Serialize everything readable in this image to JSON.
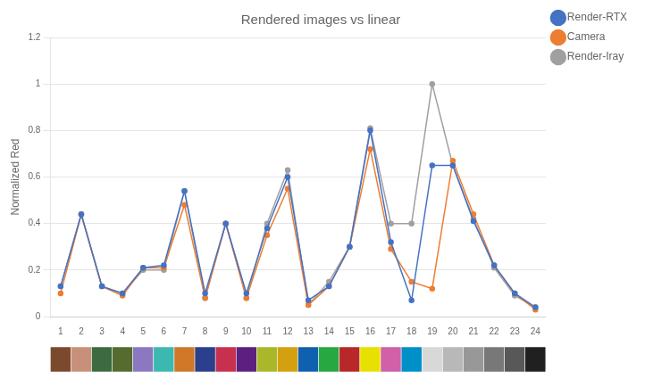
{
  "chart_data": [
    {
      "type": "line",
      "title": "Rendered images vs linear",
      "ylabel": "Normalized Red",
      "x": [
        1,
        2,
        3,
        4,
        5,
        6,
        7,
        8,
        9,
        10,
        11,
        12,
        13,
        14,
        15,
        16,
        17,
        18,
        19,
        20,
        21,
        22,
        23,
        24
      ],
      "series": [
        {
          "name": "Render-RTX",
          "color": "#4472C4",
          "values": [
            0.13,
            0.44,
            0.13,
            0.1,
            0.21,
            0.22,
            0.54,
            0.1,
            0.4,
            0.1,
            0.38,
            0.6,
            0.07,
            0.13,
            0.3,
            0.8,
            0.32,
            0.07,
            0.65,
            0.65,
            0.41,
            0.22,
            0.1,
            0.04
          ]
        },
        {
          "name": "Camera",
          "color": "#ED7D31",
          "values": [
            0.1,
            0.44,
            0.13,
            0.09,
            0.21,
            0.21,
            0.48,
            0.08,
            0.4,
            0.08,
            0.35,
            0.55,
            0.05,
            0.13,
            0.3,
            0.72,
            0.29,
            0.15,
            0.12,
            0.67,
            0.44,
            0.22,
            0.1,
            0.03
          ]
        },
        {
          "name": "Render-Iray",
          "color": "#A0A0A0",
          "values": [
            0.13,
            0.44,
            0.13,
            0.1,
            0.2,
            0.2,
            0.54,
            0.08,
            0.4,
            0.08,
            0.4,
            0.63,
            0.05,
            0.15,
            0.3,
            0.81,
            0.4,
            0.4,
            1.0,
            0.65,
            0.42,
            0.21,
            0.09,
            0.04
          ]
        }
      ],
      "xlim": [
        0.5,
        24.5
      ],
      "xticks": [
        1,
        2,
        3,
        4,
        5,
        6,
        7,
        8,
        9,
        10,
        11,
        12,
        13,
        14,
        15,
        16,
        17,
        18,
        19,
        20,
        21,
        22,
        23,
        24
      ],
      "ylim": [
        0,
        1.2
      ],
      "yticks": [
        0,
        0.2,
        0.4,
        0.6,
        0.8,
        1,
        1.2
      ],
      "grid": true,
      "legend": "right",
      "marker": "circle"
    },
    {
      "type": "swatches",
      "colors": [
        "#7B4A2D",
        "#C8907A",
        "#3D6B40",
        "#556B2F",
        "#8B78C0",
        "#3CB8B0",
        "#D07828",
        "#2B3F8C",
        "#C83050",
        "#5B2080",
        "#A8B828",
        "#D4A010",
        "#1060B0",
        "#28A840",
        "#B82828",
        "#E8E000",
        "#D060A8",
        "#0090C8",
        "#D8D8D8",
        "#B8B8B8",
        "#989898",
        "#787878",
        "#585858",
        "#202020"
      ]
    }
  ]
}
